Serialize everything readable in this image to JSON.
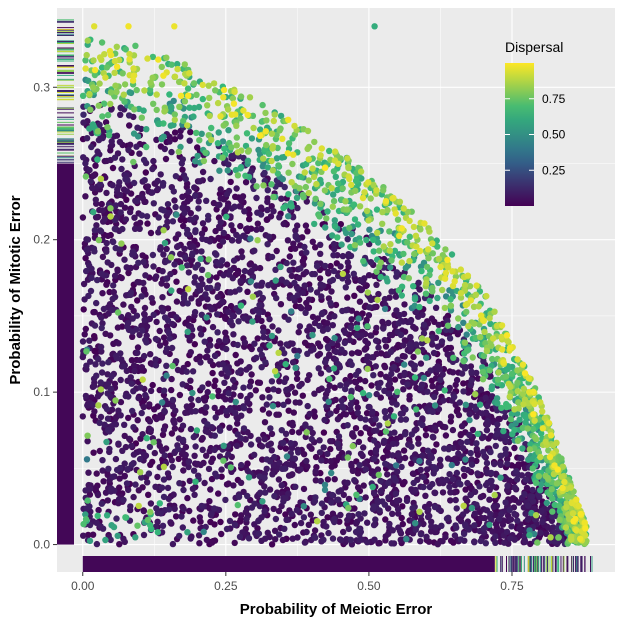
{
  "chart_data": {
    "type": "scatter",
    "xlabel": "Probability of Meiotic Error",
    "ylabel": "Probability of Mitotic Error",
    "xlim": [
      -0.045,
      0.93
    ],
    "ylim": [
      -0.018,
      0.352
    ],
    "x_ticks": [
      0.0,
      0.25,
      0.5,
      0.75
    ],
    "x_tick_labels": [
      "0.00",
      "0.25",
      "0.50",
      "0.75"
    ],
    "y_ticks": [
      0.0,
      0.1,
      0.2,
      0.3
    ],
    "y_tick_labels": [
      "0.0",
      "0.1",
      "0.2",
      "0.3"
    ],
    "grid": true,
    "background": "#ebebeb",
    "color_scale": {
      "name": "Dispersal",
      "palette": "viridis",
      "stops": [
        "#440154",
        "#31688e",
        "#35b779",
        "#fde725"
      ],
      "range": [
        0,
        1
      ],
      "legend_breaks": [
        0.75,
        0.5,
        0.25
      ],
      "legend_labels": [
        "0.75",
        "0.50",
        "0.25"
      ],
      "legend_position": "top-right"
    },
    "frontier": [
      [
        0.0,
        0.32
      ],
      [
        0.1,
        0.315
      ],
      [
        0.2,
        0.3
      ],
      [
        0.3,
        0.28
      ],
      [
        0.4,
        0.258
      ],
      [
        0.5,
        0.232
      ],
      [
        0.6,
        0.198
      ],
      [
        0.7,
        0.155
      ],
      [
        0.8,
        0.085
      ],
      [
        0.88,
        0.0
      ]
    ],
    "sample_points": [
      {
        "x": 0.51,
        "y": 0.34,
        "dispersal": 0.62
      },
      {
        "x": 0.08,
        "y": 0.34,
        "dispersal": 0.98
      },
      {
        "x": 0.16,
        "y": 0.34,
        "dispersal": 0.97
      },
      {
        "x": 0.02,
        "y": 0.34,
        "dispersal": 0.95
      },
      {
        "x": 0.84,
        "y": 0.05,
        "dispersal": 0.58
      },
      {
        "x": 0.87,
        "y": 0.02,
        "dispersal": 0.99
      },
      {
        "x": 0.78,
        "y": 0.1,
        "dispersal": 0.96
      },
      {
        "x": 0.25,
        "y": 0.1,
        "dispersal": 0.05
      }
    ],
    "rug": {
      "x_axis": true,
      "y_axis": true
    }
  }
}
